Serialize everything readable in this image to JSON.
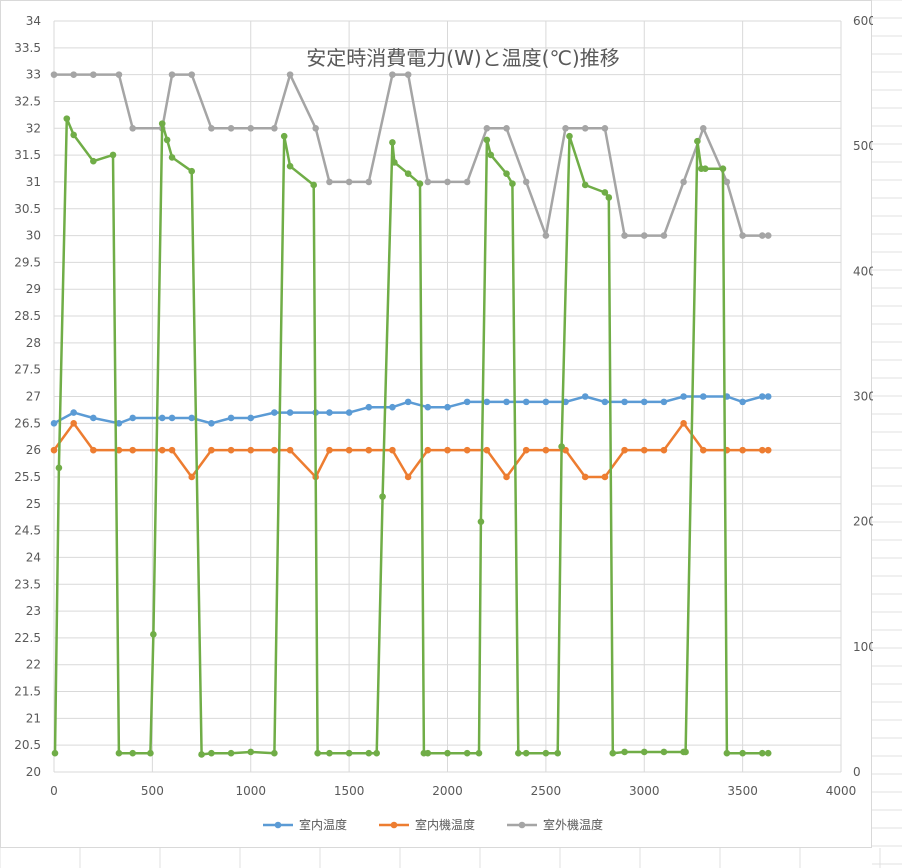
{
  "chart_data": {
    "type": "line",
    "title": "安定時消費電力(W)と温度(℃)推移",
    "x_axis": {
      "min": 0,
      "max": 4000,
      "step": 500,
      "ticks": [
        "0",
        "500",
        "1000",
        "1500",
        "2000",
        "2500",
        "3000",
        "3500",
        "4000"
      ]
    },
    "y_axis_left": {
      "min": 20,
      "max": 34,
      "step": 0.5,
      "ticks": [
        "20",
        "20.5",
        "21",
        "21.5",
        "22",
        "22.5",
        "23",
        "23.5",
        "24",
        "24.5",
        "25",
        "25.5",
        "26",
        "26.5",
        "27",
        "27.5",
        "28",
        "28.5",
        "29",
        "29.5",
        "30",
        "30.5",
        "31",
        "31.5",
        "32",
        "32.5",
        "33",
        "33.5",
        "34"
      ]
    },
    "y_axis_right": {
      "min": 0,
      "max": 600,
      "step": 100,
      "ticks": [
        "0",
        "100",
        "200",
        "300",
        "400",
        "500",
        "600"
      ]
    },
    "grid": true,
    "legend_position": "bottom",
    "series": [
      {
        "name": "室内温度",
        "axis": "left",
        "color": "#5b9bd5",
        "points": [
          [
            0,
            26.5
          ],
          [
            100,
            26.7
          ],
          [
            200,
            26.6
          ],
          [
            330,
            26.5
          ],
          [
            400,
            26.6
          ],
          [
            550,
            26.6
          ],
          [
            600,
            26.6
          ],
          [
            700,
            26.6
          ],
          [
            800,
            26.5
          ],
          [
            900,
            26.6
          ],
          [
            1000,
            26.6
          ],
          [
            1120,
            26.7
          ],
          [
            1200,
            26.7
          ],
          [
            1330,
            26.7
          ],
          [
            1400,
            26.7
          ],
          [
            1500,
            26.7
          ],
          [
            1600,
            26.8
          ],
          [
            1720,
            26.8
          ],
          [
            1800,
            26.9
          ],
          [
            1900,
            26.8
          ],
          [
            2000,
            26.8
          ],
          [
            2100,
            26.9
          ],
          [
            2200,
            26.9
          ],
          [
            2300,
            26.9
          ],
          [
            2400,
            26.9
          ],
          [
            2500,
            26.9
          ],
          [
            2600,
            26.9
          ],
          [
            2700,
            27.0
          ],
          [
            2800,
            26.9
          ],
          [
            2900,
            26.9
          ],
          [
            3000,
            26.9
          ],
          [
            3100,
            26.9
          ],
          [
            3200,
            27.0
          ],
          [
            3300,
            27.0
          ],
          [
            3420,
            27.0
          ],
          [
            3500,
            26.9
          ],
          [
            3600,
            27.0
          ],
          [
            3630,
            27.0
          ]
        ]
      },
      {
        "name": "室内機温度",
        "axis": "left",
        "color": "#ed7d31",
        "points": [
          [
            0,
            26.0
          ],
          [
            100,
            26.5
          ],
          [
            200,
            26.0
          ],
          [
            330,
            26.0
          ],
          [
            400,
            26.0
          ],
          [
            550,
            26.0
          ],
          [
            600,
            26.0
          ],
          [
            700,
            25.5
          ],
          [
            800,
            26.0
          ],
          [
            900,
            26.0
          ],
          [
            1000,
            26.0
          ],
          [
            1120,
            26.0
          ],
          [
            1200,
            26.0
          ],
          [
            1330,
            25.5
          ],
          [
            1400,
            26.0
          ],
          [
            1500,
            26.0
          ],
          [
            1600,
            26.0
          ],
          [
            1720,
            26.0
          ],
          [
            1800,
            25.5
          ],
          [
            1900,
            26.0
          ],
          [
            2000,
            26.0
          ],
          [
            2100,
            26.0
          ],
          [
            2200,
            26.0
          ],
          [
            2300,
            25.5
          ],
          [
            2400,
            26.0
          ],
          [
            2500,
            26.0
          ],
          [
            2600,
            26.0
          ],
          [
            2700,
            25.5
          ],
          [
            2800,
            25.5
          ],
          [
            2900,
            26.0
          ],
          [
            3000,
            26.0
          ],
          [
            3100,
            26.0
          ],
          [
            3200,
            26.5
          ],
          [
            3300,
            26.0
          ],
          [
            3420,
            26.0
          ],
          [
            3500,
            26.0
          ],
          [
            3600,
            26.0
          ],
          [
            3630,
            26.0
          ]
        ]
      },
      {
        "name": "室外機温度",
        "axis": "left",
        "color": "#a5a5a5",
        "points": [
          [
            0,
            33.0
          ],
          [
            100,
            33.0
          ],
          [
            200,
            33.0
          ],
          [
            330,
            33.0
          ],
          [
            400,
            32.0
          ],
          [
            550,
            32.0
          ],
          [
            600,
            33.0
          ],
          [
            700,
            33.0
          ],
          [
            800,
            32.0
          ],
          [
            900,
            32.0
          ],
          [
            1000,
            32.0
          ],
          [
            1120,
            32.0
          ],
          [
            1200,
            33.0
          ],
          [
            1330,
            32.0
          ],
          [
            1400,
            31.0
          ],
          [
            1500,
            31.0
          ],
          [
            1600,
            31.0
          ],
          [
            1720,
            33.0
          ],
          [
            1800,
            33.0
          ],
          [
            1900,
            31.0
          ],
          [
            2000,
            31.0
          ],
          [
            2100,
            31.0
          ],
          [
            2200,
            32.0
          ],
          [
            2300,
            32.0
          ],
          [
            2400,
            31.0
          ],
          [
            2500,
            30.0
          ],
          [
            2600,
            32.0
          ],
          [
            2700,
            32.0
          ],
          [
            2800,
            32.0
          ],
          [
            2900,
            30.0
          ],
          [
            3000,
            30.0
          ],
          [
            3100,
            30.0
          ],
          [
            3200,
            31.0
          ],
          [
            3300,
            32.0
          ],
          [
            3420,
            31.0
          ],
          [
            3500,
            30.0
          ],
          [
            3600,
            30.0
          ],
          [
            3630,
            30.0
          ]
        ]
      },
      {
        "name": "",
        "axis": "right",
        "color": "#70ad47",
        "points": [
          [
            5,
            15
          ],
          [
            25,
            243
          ],
          [
            65,
            522
          ],
          [
            100,
            509
          ],
          [
            200,
            488
          ],
          [
            300,
            493
          ],
          [
            330,
            15
          ],
          [
            400,
            15
          ],
          [
            490,
            15
          ],
          [
            505,
            110
          ],
          [
            550,
            518
          ],
          [
            575,
            505
          ],
          [
            600,
            491
          ],
          [
            700,
            480
          ],
          [
            750,
            14
          ],
          [
            800,
            15
          ],
          [
            900,
            15
          ],
          [
            1000,
            16
          ],
          [
            1120,
            15
          ],
          [
            1170,
            508
          ],
          [
            1200,
            484
          ],
          [
            1320,
            469
          ],
          [
            1340,
            15
          ],
          [
            1400,
            15
          ],
          [
            1500,
            15
          ],
          [
            1600,
            15
          ],
          [
            1640,
            15
          ],
          [
            1670,
            220
          ],
          [
            1720,
            503
          ],
          [
            1730,
            487
          ],
          [
            1800,
            478
          ],
          [
            1860,
            470
          ],
          [
            1880,
            15
          ],
          [
            1900,
            15
          ],
          [
            2000,
            15
          ],
          [
            2100,
            15
          ],
          [
            2160,
            15
          ],
          [
            2170,
            200
          ],
          [
            2200,
            505
          ],
          [
            2220,
            493
          ],
          [
            2300,
            478
          ],
          [
            2330,
            470
          ],
          [
            2360,
            15
          ],
          [
            2400,
            15
          ],
          [
            2500,
            15
          ],
          [
            2560,
            15
          ],
          [
            2580,
            260
          ],
          [
            2620,
            508
          ],
          [
            2700,
            469
          ],
          [
            2800,
            463
          ],
          [
            2820,
            459
          ],
          [
            2840,
            15
          ],
          [
            2900,
            16
          ],
          [
            3000,
            16
          ],
          [
            3100,
            16
          ],
          [
            3200,
            16
          ],
          [
            3210,
            16
          ],
          [
            3270,
            504
          ],
          [
            3290,
            482
          ],
          [
            3310,
            482
          ],
          [
            3400,
            482
          ],
          [
            3420,
            15
          ],
          [
            3500,
            15
          ],
          [
            3600,
            15
          ],
          [
            3630,
            15
          ]
        ]
      }
    ]
  }
}
